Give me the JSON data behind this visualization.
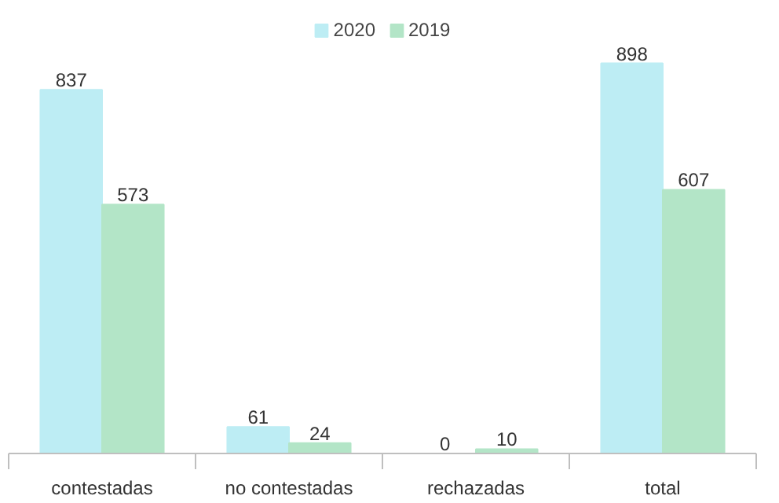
{
  "chart_data": {
    "type": "bar",
    "categories": [
      "contestadas",
      "no contestadas",
      "rechazadas",
      "total"
    ],
    "series": [
      {
        "name": "2020",
        "color": "#bdedf4",
        "values": [
          837,
          61,
          0,
          898
        ]
      },
      {
        "name": "2019",
        "color": "#b3e5c7",
        "values": [
          573,
          24,
          10,
          607
        ]
      }
    ],
    "data_labels": true,
    "legend": "top",
    "grid": false
  }
}
